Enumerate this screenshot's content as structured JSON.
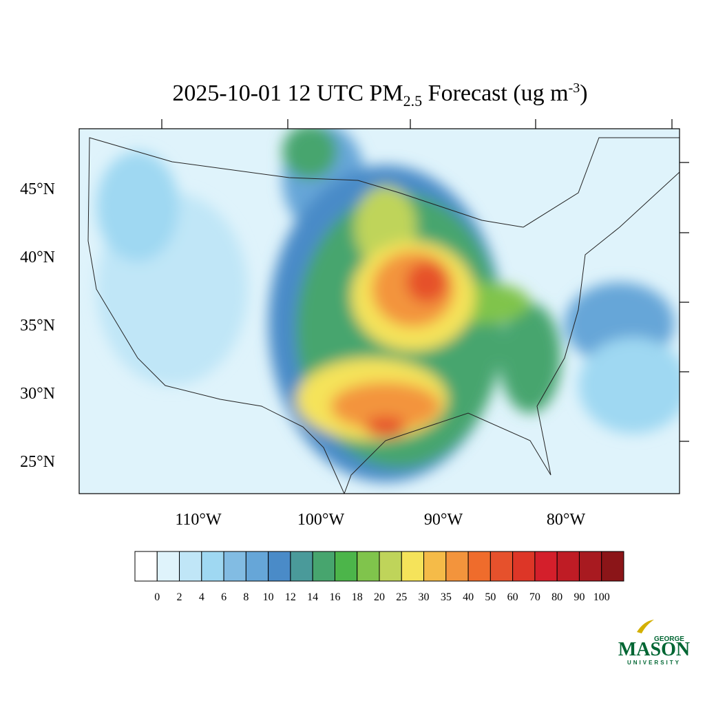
{
  "title": {
    "main": "2025-10-01 12 UTC PM",
    "sub": "2.5",
    "rest": " Forecast (ug m",
    "sup": "-3",
    "end": ")"
  },
  "map": {
    "lat_ticks": [
      {
        "value": 45,
        "label": "45°N"
      },
      {
        "value": 40,
        "label": "40°N"
      },
      {
        "value": 35,
        "label": "35°N"
      },
      {
        "value": 30,
        "label": "30°N"
      },
      {
        "value": 25,
        "label": "25°N"
      }
    ],
    "lon_ticks": [
      {
        "value": -110,
        "label": "110°W"
      },
      {
        "value": -100,
        "label": "100°W"
      },
      {
        "value": -90,
        "label": "90°W"
      },
      {
        "value": -80,
        "label": "80°W"
      }
    ]
  },
  "colorbar": {
    "levels": [
      0,
      2,
      4,
      6,
      8,
      10,
      12,
      14,
      16,
      18,
      20,
      25,
      30,
      35,
      40,
      50,
      60,
      70,
      80,
      90,
      100
    ],
    "colors": [
      "#ffffff",
      "#dff3fb",
      "#c0e6f7",
      "#9fd8f2",
      "#82bce3",
      "#66a6d8",
      "#4a8bc8",
      "#4a9a9a",
      "#47a56e",
      "#4cb54a",
      "#80c44c",
      "#bfd45a",
      "#f5e35a",
      "#f5bb48",
      "#f3943c",
      "#ef6c2c",
      "#e6512c",
      "#dd3627",
      "#d41f2b",
      "#bf1c25",
      "#a81a20",
      "#8b1518"
    ]
  },
  "logo": {
    "top": "GEORGE",
    "main": "MASON",
    "bottom": "UNIVERSITY"
  }
}
